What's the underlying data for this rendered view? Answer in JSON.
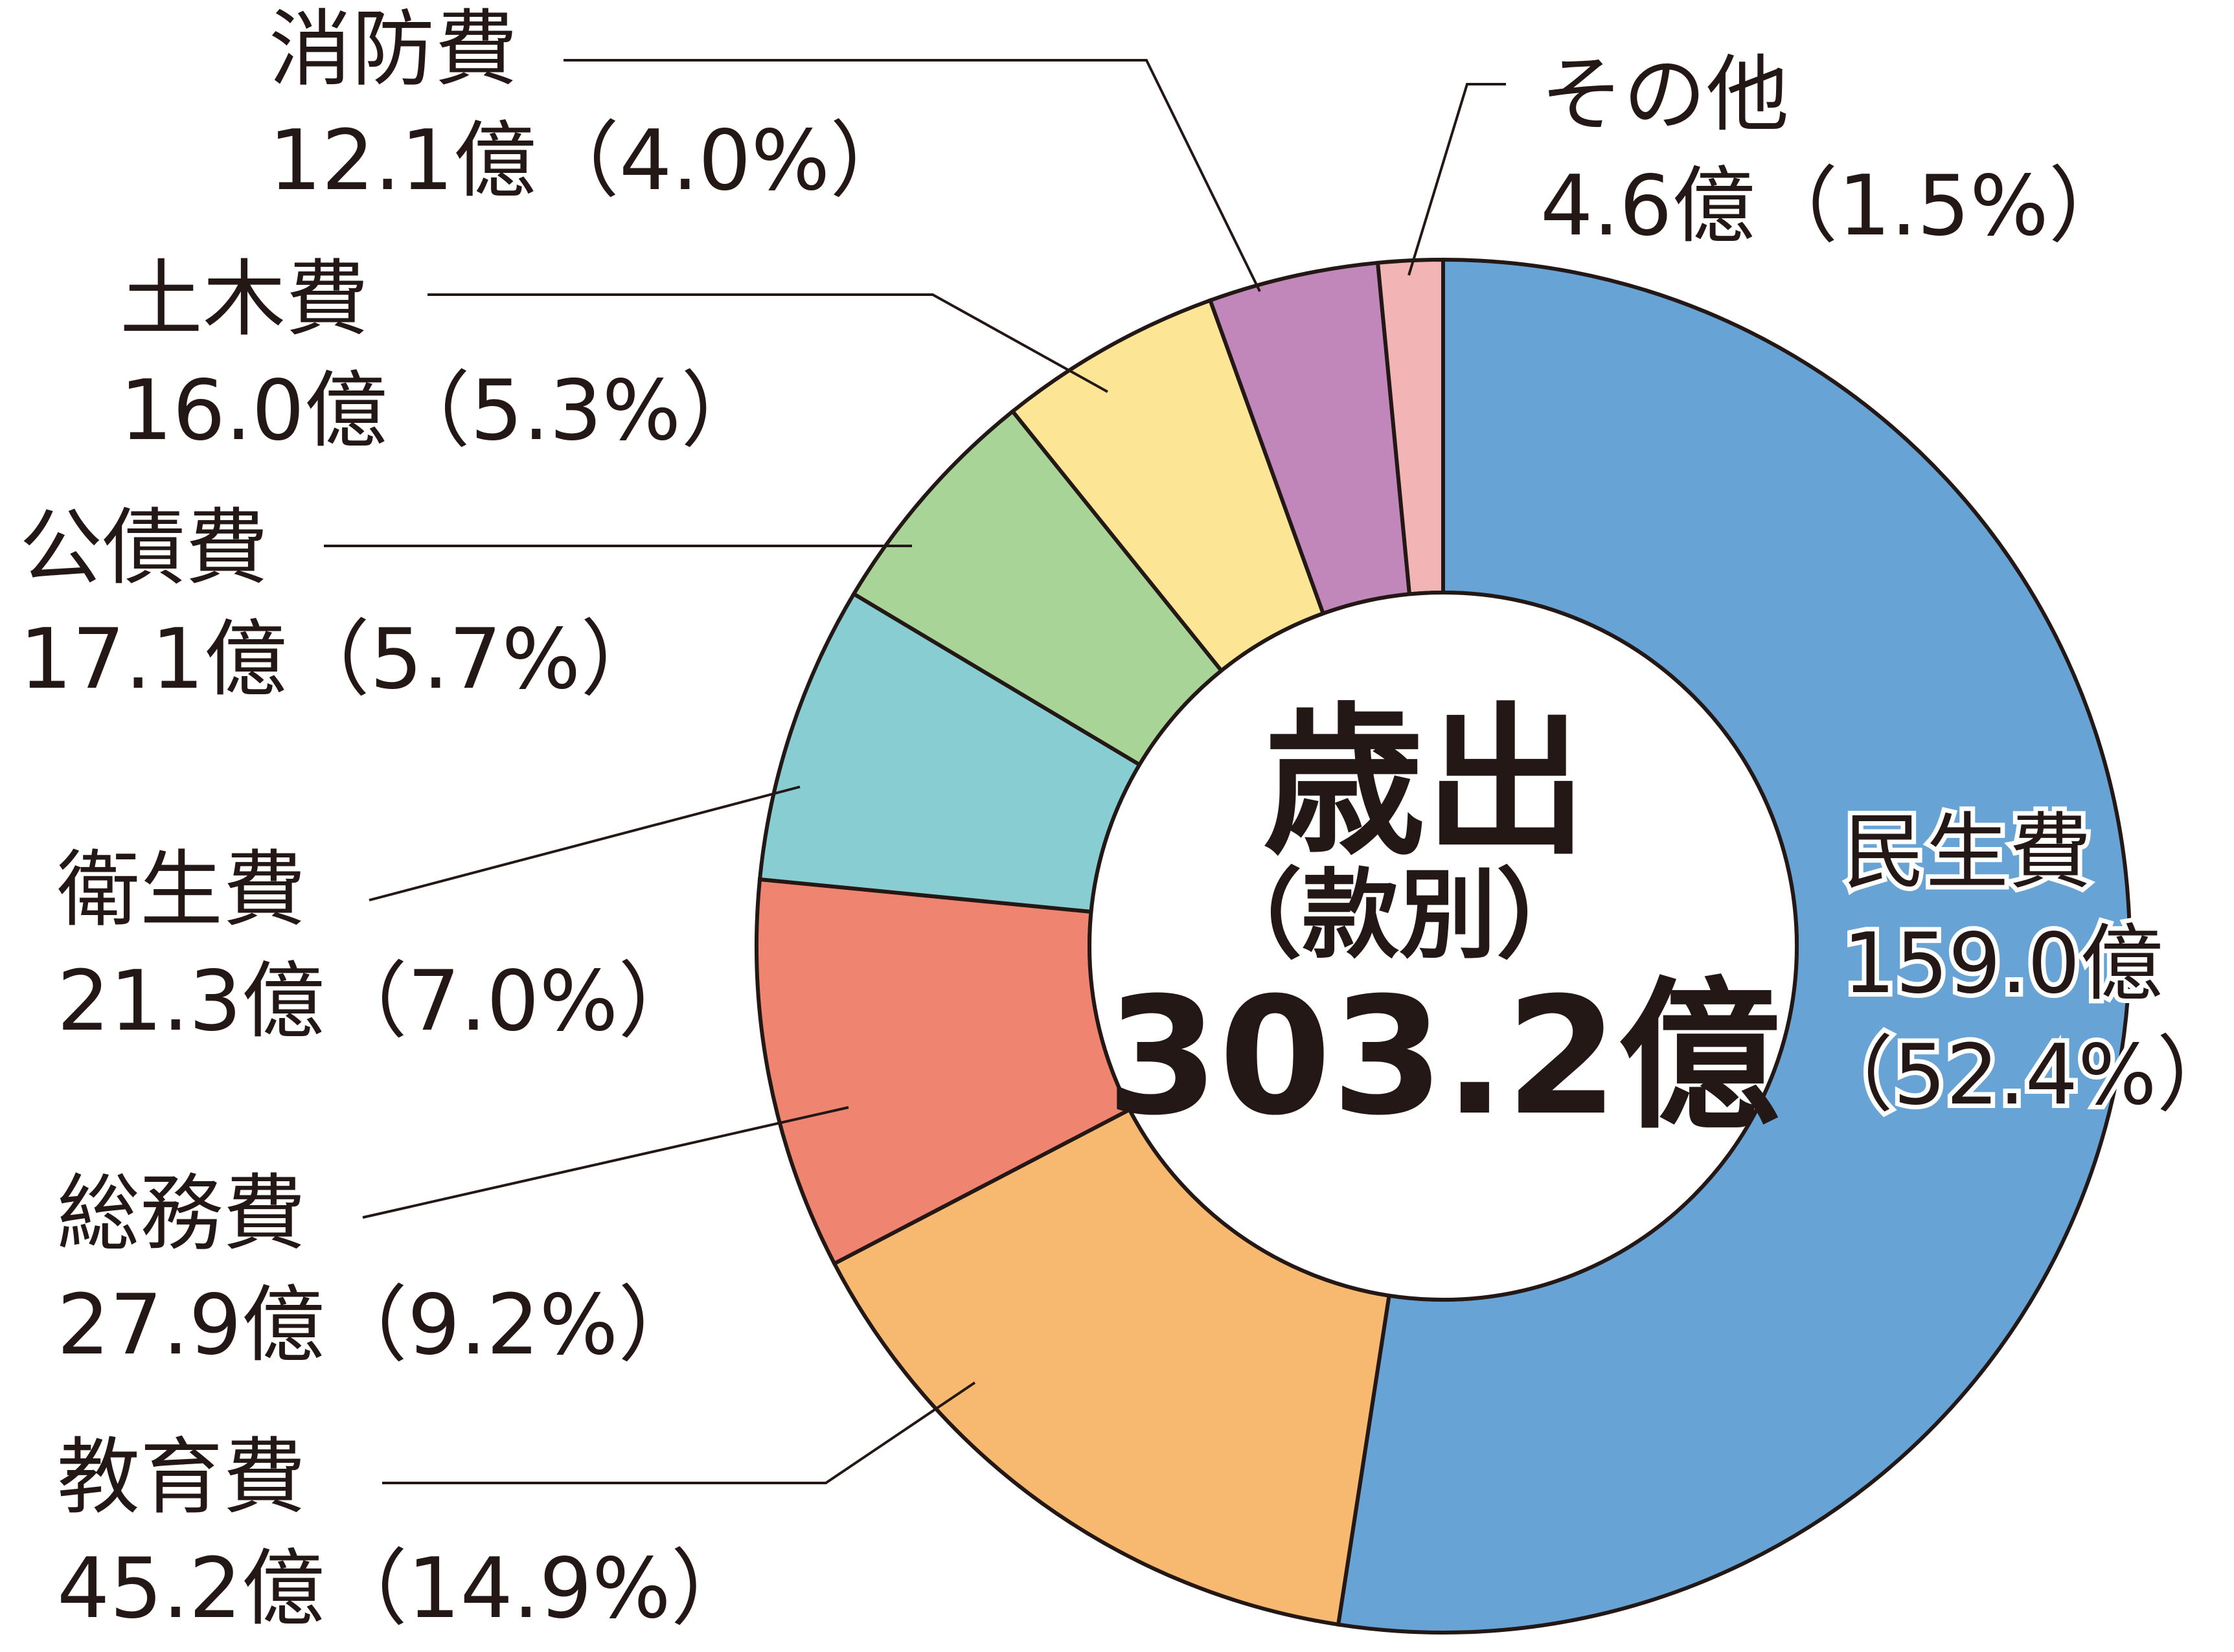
{
  "chart_data": {
    "type": "pie",
    "variant": "donut",
    "center": {
      "title": "歳出",
      "subtitle": "（款別）",
      "total": "303.2億"
    },
    "unit": "億",
    "slices": [
      {
        "name": "民生費",
        "value": 159.0,
        "percent": 52.4,
        "amount_text": "159.0億",
        "percent_text": "（52.4%）",
        "color": "#68A3D6"
      },
      {
        "name": "教育費",
        "value": 45.2,
        "percent": 14.9,
        "amount_text": "45.2億",
        "percent_text": "（14.9%）",
        "color": "#F6B96F"
      },
      {
        "name": "総務費",
        "value": 27.9,
        "percent": 9.2,
        "amount_text": "27.9億",
        "percent_text": "（9.2%）",
        "color": "#EF8571"
      },
      {
        "name": "衛生費",
        "value": 21.3,
        "percent": 7.0,
        "amount_text": "21.3億",
        "percent_text": "（7.0%）",
        "color": "#88CDD1"
      },
      {
        "name": "公債費",
        "value": 17.1,
        "percent": 5.7,
        "amount_text": "17.1億",
        "percent_text": "（5.7%）",
        "color": "#A8D497"
      },
      {
        "name": "土木費",
        "value": 16.0,
        "percent": 5.3,
        "amount_text": "16.0億",
        "percent_text": "（5.3%）",
        "color": "#FCE695"
      },
      {
        "name": "消防費",
        "value": 12.1,
        "percent": 4.0,
        "amount_text": "12.1億",
        "percent_text": "（4.0%）",
        "color": "#C287BA"
      },
      {
        "name": "その他",
        "value": 4.6,
        "percent": 1.5,
        "amount_text": "4.6億",
        "percent_text": "（1.5%）",
        "color": "#F3B4B5"
      }
    ]
  }
}
